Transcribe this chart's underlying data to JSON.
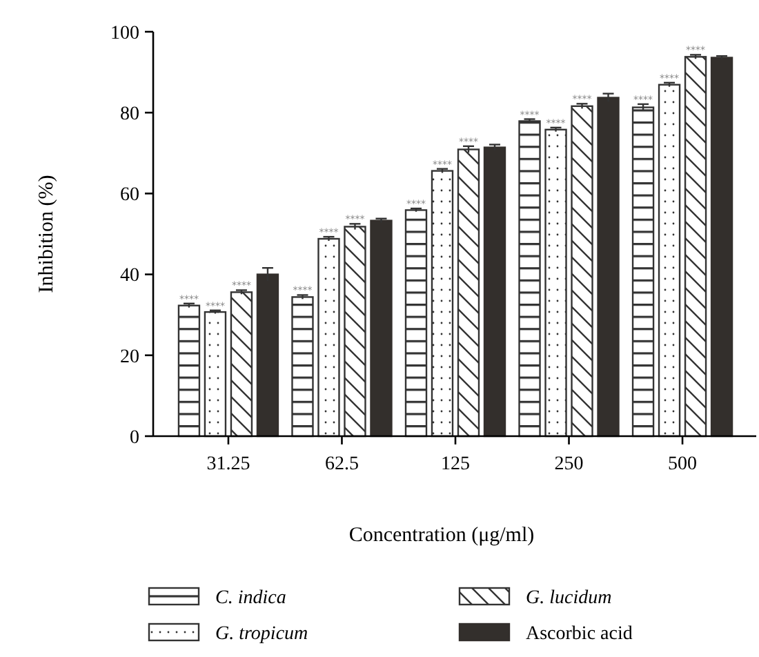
{
  "chart_data": {
    "type": "bar",
    "xlabel": "Concentration (μg/ml)",
    "ylabel": "Inhibition (%)",
    "categories": [
      "31.25",
      "62.5",
      "125",
      "250",
      "500"
    ],
    "ylim": [
      0,
      100
    ],
    "yticks": [
      0,
      20,
      40,
      60,
      80,
      100
    ],
    "grid": false,
    "legend": "bottom",
    "series": [
      {
        "name": "C. indica",
        "color": "#333333",
        "values": [
          32.3,
          34.4,
          55.9,
          77.9,
          81.3
        ],
        "errors": [
          0.5,
          0.5,
          0.4,
          0.5,
          0.8
        ],
        "value_labels": [
          "****",
          "****",
          "****",
          "****",
          "****"
        ]
      },
      {
        "name": "G. tropicum",
        "color": "#333333",
        "values": [
          30.7,
          48.8,
          65.6,
          75.8,
          86.9
        ],
        "errors": [
          0.4,
          0.5,
          0.5,
          0.5,
          0.5
        ],
        "value_labels": [
          "****",
          "****",
          "****",
          "****",
          "****"
        ]
      },
      {
        "name": "G. lucidum",
        "color": "#333333",
        "values": [
          35.6,
          51.8,
          70.9,
          81.6,
          93.8
        ],
        "errors": [
          0.5,
          0.7,
          0.8,
          0.6,
          0.5
        ],
        "value_labels": [
          "****",
          "****",
          "****",
          "****",
          "****"
        ]
      },
      {
        "name": "Ascorbic acid",
        "color": "#332f2c",
        "values": [
          40,
          53.3,
          71.4,
          83.7,
          93.6
        ],
        "errors": [
          1.6,
          0.5,
          0.7,
          1.0,
          0.4
        ]
      }
    ]
  }
}
